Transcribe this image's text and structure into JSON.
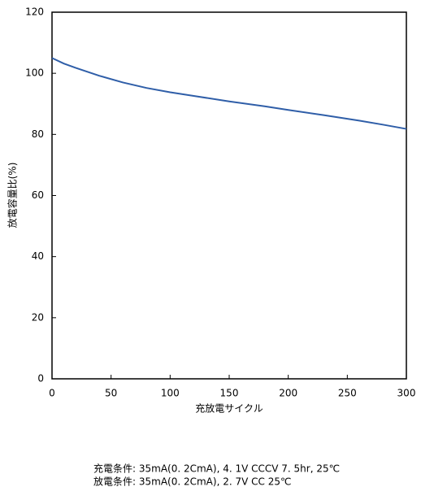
{
  "chart_data": {
    "type": "line",
    "xlabel": "充放電サイクル",
    "ylabel": "放電容量比(%)",
    "x": [
      0,
      10,
      20,
      40,
      60,
      80,
      100,
      120,
      150,
      180,
      200,
      230,
      260,
      280,
      300
    ],
    "series": [
      {
        "name": "放電容量比",
        "color": "#2f5ea8",
        "values": [
          105,
          103.2,
          101.8,
          99.2,
          97,
          95.2,
          93.8,
          92.6,
          90.8,
          89.2,
          88,
          86.3,
          84.5,
          83.2,
          81.8
        ]
      }
    ],
    "xlim": [
      0,
      300
    ],
    "xticks": [
      0,
      50,
      100,
      150,
      200,
      250,
      300
    ],
    "ylim": [
      0,
      120
    ],
    "yticks": [
      0,
      20,
      40,
      60,
      80,
      100,
      120
    ],
    "grid": false,
    "legend": false,
    "annotations": [
      "充電条件: 35mA(0. 2CmA), 4. 1V CCCV 7. 5hr, 25℃",
      "放電条件: 35mA(0. 2CmA), 2. 7V CC  25℃"
    ]
  }
}
